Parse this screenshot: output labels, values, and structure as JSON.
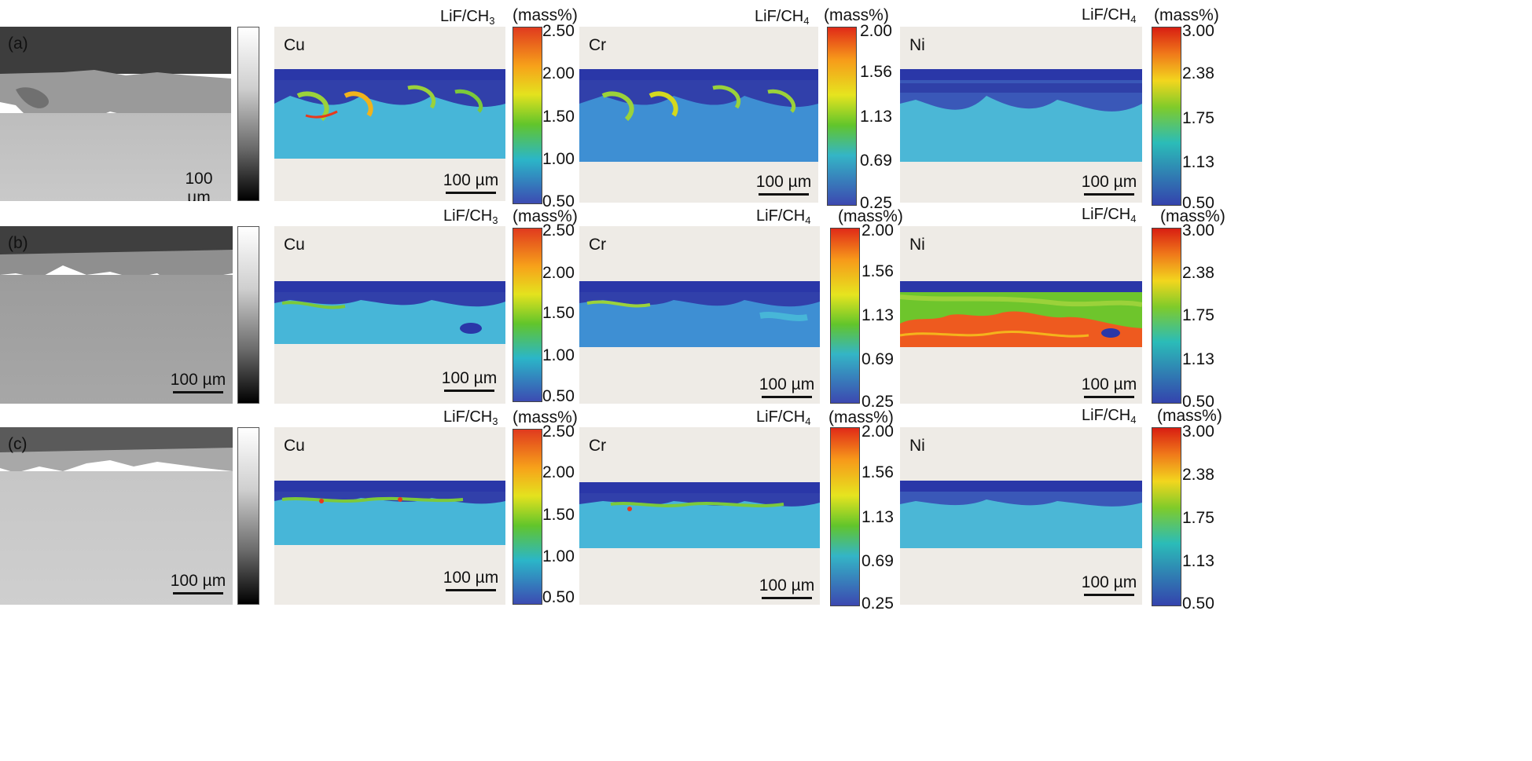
{
  "rows": [
    {
      "label": "(a)",
      "scale_bar": "100 µm",
      "maps": [
        {
          "element": "Cu",
          "crystal": "LiF/CH",
          "crystal_sub": "3",
          "unit": "(mass%)",
          "ticks": [
            "2.50",
            "2.00",
            "1.50",
            "1.00",
            "0.50"
          ],
          "scale_bar": "100 µm"
        },
        {
          "element": "Cr",
          "crystal": "LiF/CH",
          "crystal_sub": "4",
          "unit": "(mass%)",
          "ticks": [
            "2.00",
            "1.56",
            "1.13",
            "0.69",
            "0.25"
          ],
          "scale_bar": "100 µm"
        },
        {
          "element": "Ni",
          "crystal": "LiF/CH",
          "crystal_sub": "4",
          "unit": "(mass%)",
          "ticks": [
            "3.00",
            "2.38",
            "1.75",
            "1.13",
            "0.50"
          ],
          "scale_bar": "100 µm"
        }
      ]
    },
    {
      "label": "(b)",
      "scale_bar": "100 µm",
      "maps": [
        {
          "element": "Cu",
          "crystal": "LiF/CH",
          "crystal_sub": "3",
          "unit": "(mass%)",
          "ticks": [
            "2.50",
            "2.00",
            "1.50",
            "1.00",
            "0.50"
          ],
          "scale_bar": "100 µm"
        },
        {
          "element": "Cr",
          "crystal": "LiF/CH",
          "crystal_sub": "4",
          "unit": "(mass%)",
          "ticks": [
            "2.00",
            "1.56",
            "1.13",
            "0.69",
            "0.25"
          ],
          "scale_bar": "100 µm"
        },
        {
          "element": "Ni",
          "crystal": "LiF/CH",
          "crystal_sub": "4",
          "unit": "(mass%)",
          "ticks": [
            "3.00",
            "2.38",
            "1.75",
            "1.13",
            "0.50"
          ],
          "scale_bar": "100 µm"
        }
      ]
    },
    {
      "label": "(c)",
      "scale_bar": "100 µm",
      "maps": [
        {
          "element": "Cu",
          "crystal": "LiF/CH",
          "crystal_sub": "3",
          "unit": "(mass%)",
          "ticks": [
            "2.50",
            "2.00",
            "1.50",
            "1.00",
            "0.50"
          ],
          "scale_bar": "100 µm"
        },
        {
          "element": "Cr",
          "crystal": "LiF/CH",
          "crystal_sub": "4",
          "unit": "(mass%)",
          "ticks": [
            "2.00",
            "1.56",
            "1.13",
            "0.69",
            "0.25"
          ],
          "scale_bar": "100 µm"
        },
        {
          "element": "Ni",
          "crystal": "LiF/CH",
          "crystal_sub": "4",
          "unit": "(mass%)",
          "ticks": [
            "3.00",
            "2.38",
            "1.75",
            "1.13",
            "0.50"
          ],
          "scale_bar": "100 µm"
        }
      ]
    }
  ],
  "colors": {
    "map_background": "#eeebe6",
    "oxide_top": "#2a37a8",
    "matrix": "#47b6d8",
    "high_ni": "#e8391c"
  }
}
